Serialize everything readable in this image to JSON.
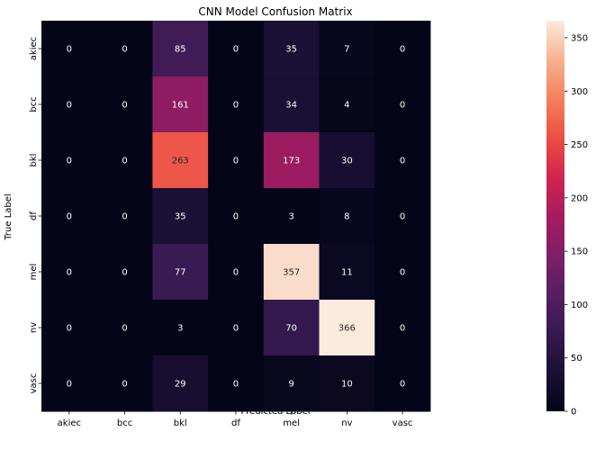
{
  "chart_data": {
    "type": "heatmap",
    "title": "CNN Model Confusion Matrix",
    "xlabel": "Predicted Label",
    "ylabel": "True Label",
    "x_categories": [
      "akiec",
      "bcc",
      "bkl",
      "df",
      "mel",
      "nv",
      "vasc"
    ],
    "y_categories": [
      "akiec",
      "bcc",
      "bkl",
      "df",
      "mel",
      "nv",
      "vasc"
    ],
    "values": [
      [
        0,
        0,
        85,
        0,
        35,
        7,
        0
      ],
      [
        0,
        0,
        161,
        0,
        34,
        4,
        0
      ],
      [
        0,
        0,
        263,
        0,
        173,
        30,
        0
      ],
      [
        0,
        0,
        35,
        0,
        3,
        8,
        0
      ],
      [
        0,
        0,
        77,
        0,
        357,
        11,
        0
      ],
      [
        0,
        0,
        3,
        0,
        70,
        366,
        0
      ],
      [
        0,
        0,
        29,
        0,
        9,
        10,
        0
      ]
    ],
    "colorbar": {
      "min": 0,
      "max": 366,
      "ticks": [
        0,
        50,
        100,
        150,
        200,
        250,
        300,
        350
      ],
      "colormap": "rocket"
    },
    "grid": false,
    "legend": "colorbar-right"
  }
}
